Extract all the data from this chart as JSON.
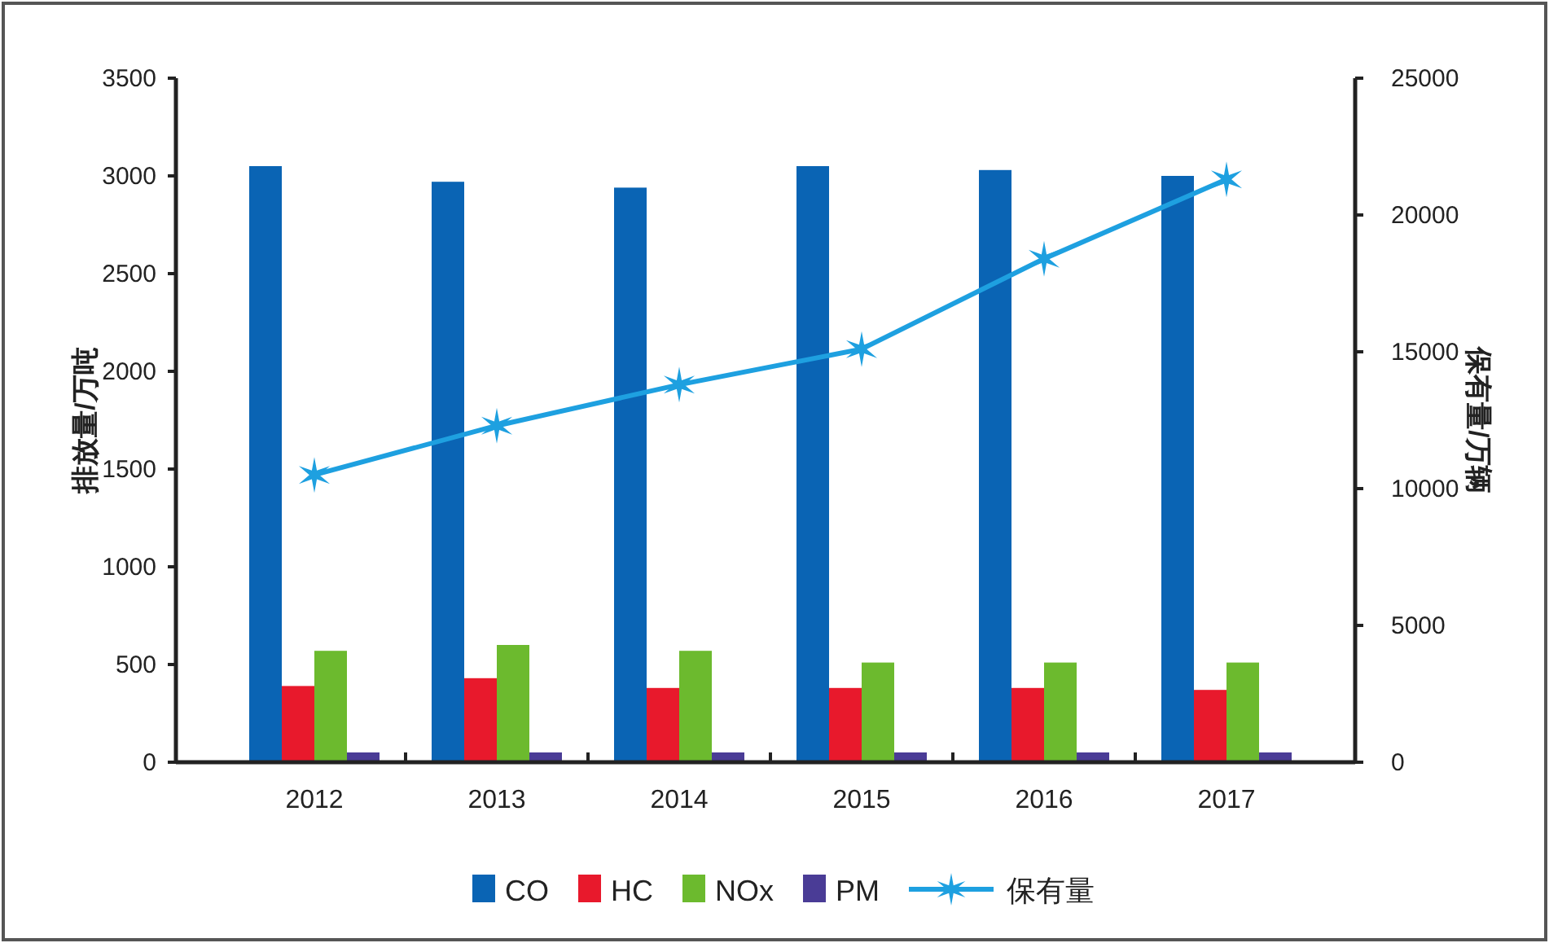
{
  "chart_data": {
    "type": "bar",
    "categories": [
      "2012",
      "2013",
      "2014",
      "2015",
      "2016",
      "2017"
    ],
    "ylabel": "排放量/万吨",
    "y2label": "保有量/万辆",
    "ylim": [
      0,
      3500
    ],
    "yticks": [
      0,
      500,
      1000,
      1500,
      2000,
      2500,
      3000,
      3500
    ],
    "y2lim": [
      0,
      25000
    ],
    "y2ticks": [
      0,
      5000,
      10000,
      15000,
      20000,
      25000
    ],
    "legend": "bottom",
    "series": [
      {
        "name": "CO",
        "color": "#0a64b4",
        "values": [
          3050,
          2970,
          2940,
          3050,
          3030,
          3000
        ]
      },
      {
        "name": "HC",
        "color": "#e8192c",
        "values": [
          390,
          430,
          380,
          380,
          380,
          370
        ]
      },
      {
        "name": "NOx",
        "color": "#6cba2e",
        "values": [
          570,
          600,
          570,
          510,
          510,
          510
        ]
      },
      {
        "name": "PM",
        "color": "#4a3c96",
        "values": [
          50,
          50,
          50,
          50,
          50,
          50
        ]
      },
      {
        "name": "保有量",
        "type": "line",
        "axis": "y2",
        "marker": "cross",
        "color": "#1ea0e0",
        "values": [
          10500,
          12300,
          13800,
          15100,
          18400,
          21300
        ]
      }
    ]
  }
}
